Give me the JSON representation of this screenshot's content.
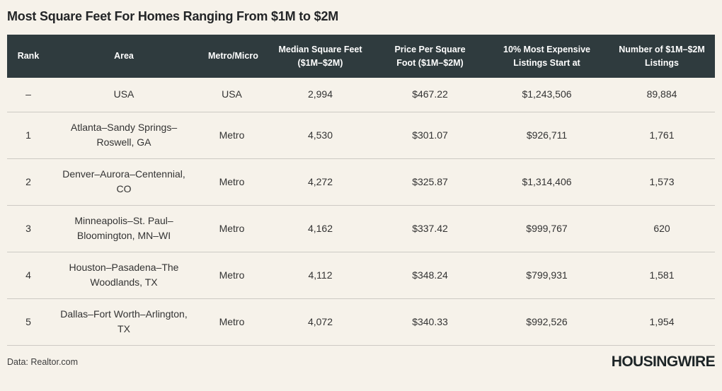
{
  "title": "Most Square Feet For Homes Ranging From $1M to $2M",
  "colors": {
    "page_background": "#f6f2ea",
    "header_background": "#2f3b3e",
    "header_text": "#ffffff",
    "body_text": "#333333",
    "row_separator": "#cdcac4"
  },
  "chart_data": {
    "type": "table",
    "title": "Most Square Feet For Homes Ranging From $1M to $2M",
    "columns": [
      "Rank",
      "Area",
      "Metro/Micro",
      "Median Square Feet ($1M–$2M)",
      "Price Per Square Foot ($1M–$2M)",
      "10% Most Expensive Listings Start at",
      "Number of $1M–$2M Listings"
    ],
    "rows": [
      [
        "–",
        "USA",
        "USA",
        "2,994",
        "$467.22",
        "$1,243,506",
        "89,884"
      ],
      [
        "1",
        "Atlanta–Sandy Springs–Roswell, GA",
        "Metro",
        "4,530",
        "$301.07",
        "$926,711",
        "1,761"
      ],
      [
        "2",
        "Denver–Aurora–Centennial, CO",
        "Metro",
        "4,272",
        "$325.87",
        "$1,314,406",
        "1,573"
      ],
      [
        "3",
        "Minneapolis–St. Paul–Bloomington, MN–WI",
        "Metro",
        "4,162",
        "$337.42",
        "$999,767",
        "620"
      ],
      [
        "4",
        "Houston–Pasadena–The Woodlands, TX",
        "Metro",
        "4,112",
        "$348.24",
        "$799,931",
        "1,581"
      ],
      [
        "5",
        "Dallas–Fort Worth–Arlington, TX",
        "Metro",
        "4,072",
        "$340.33",
        "$992,526",
        "1,954"
      ]
    ]
  },
  "table": {
    "headers": {
      "rank": "Rank",
      "area": "Area",
      "metro": "Metro/Micro",
      "median_sqft": "Median Square Feet ($1M–$2M)",
      "price_per_sqft": "Price Per Square Foot ($1M–$2M)",
      "top10_start": "10% Most Expensive Listings Start at",
      "listing_count": "Number of $1M–$2M Listings"
    },
    "rows": [
      {
        "rank": "–",
        "area": "USA",
        "metro": "USA",
        "median_sqft": "2,994",
        "price_per_sqft": "$467.22",
        "top10_start": "$1,243,506",
        "listing_count": "89,884"
      },
      {
        "rank": "1",
        "area": "Atlanta–Sandy Springs–Roswell, GA",
        "metro": "Metro",
        "median_sqft": "4,530",
        "price_per_sqft": "$301.07",
        "top10_start": "$926,711",
        "listing_count": "1,761"
      },
      {
        "rank": "2",
        "area": "Denver–Aurora–Centennial, CO",
        "metro": "Metro",
        "median_sqft": "4,272",
        "price_per_sqft": "$325.87",
        "top10_start": "$1,314,406",
        "listing_count": "1,573"
      },
      {
        "rank": "3",
        "area": "Minneapolis–St. Paul–Bloomington, MN–WI",
        "metro": "Metro",
        "median_sqft": "4,162",
        "price_per_sqft": "$337.42",
        "top10_start": "$999,767",
        "listing_count": "620"
      },
      {
        "rank": "4",
        "area": "Houston–Pasadena–The Woodlands, TX",
        "metro": "Metro",
        "median_sqft": "4,112",
        "price_per_sqft": "$348.24",
        "top10_start": "$799,931",
        "listing_count": "1,581"
      },
      {
        "rank": "5",
        "area": "Dallas–Fort Worth–Arlington, TX",
        "metro": "Metro",
        "median_sqft": "4,072",
        "price_per_sqft": "$340.33",
        "top10_start": "$992,526",
        "listing_count": "1,954"
      }
    ]
  },
  "footer": {
    "source": "Data: Realtor.com",
    "brand": "HOUSINGWIRE"
  }
}
